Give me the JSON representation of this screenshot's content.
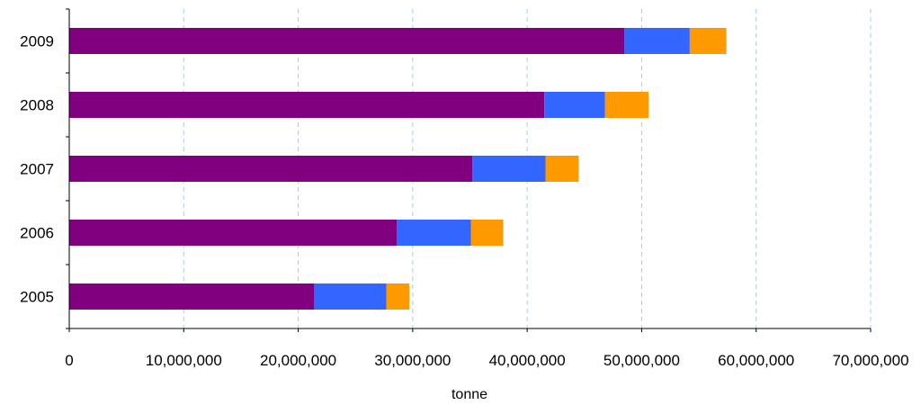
{
  "chart_data": {
    "type": "bar",
    "orientation": "horizontal",
    "stacked": true,
    "categories": [
      "2005",
      "2006",
      "2007",
      "2008",
      "2009"
    ],
    "series": [
      {
        "color": "#800080",
        "values": [
          21400000,
          28600000,
          35200000,
          41500000,
          48500000
        ]
      },
      {
        "color": "#3366ff",
        "values": [
          6300000,
          6500000,
          6400000,
          5300000,
          5700000
        ]
      },
      {
        "color": "#ff9900",
        "values": [
          2000000,
          2800000,
          2900000,
          3800000,
          3200000
        ]
      }
    ],
    "xlim": [
      0,
      70000000
    ],
    "xticks": [
      "0",
      "10,000,000",
      "20,000,000",
      "30,000,000",
      "40,000,000",
      "50,000,000",
      "60,000,000",
      "70,000,000"
    ],
    "xlabel": "tonne",
    "grid": "vertical dashed",
    "legend": false
  }
}
